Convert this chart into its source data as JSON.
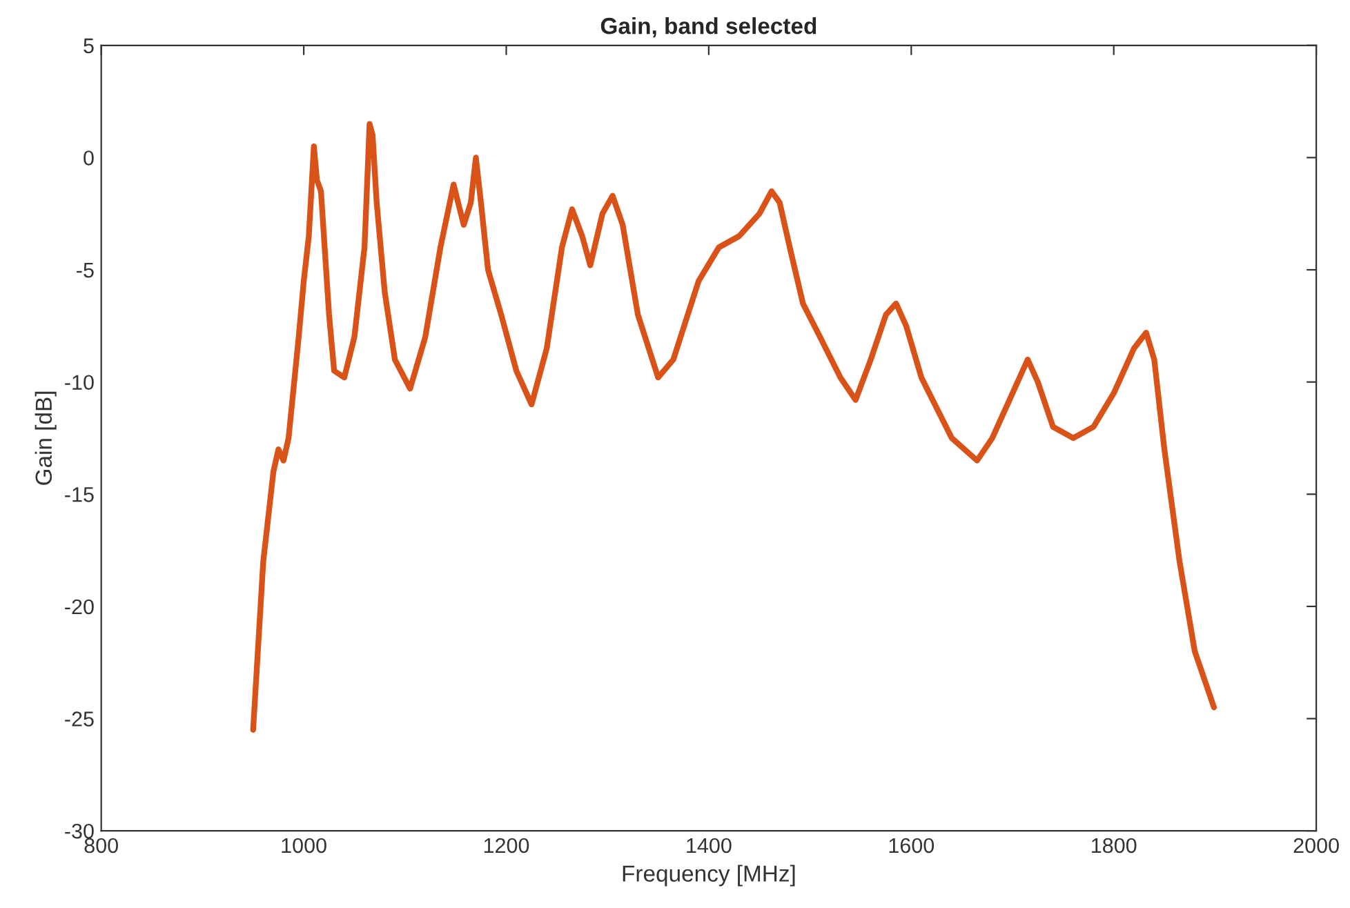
{
  "chart_data": {
    "type": "line",
    "title": "Gain, band selected",
    "xlabel": "Frequency [MHz]",
    "ylabel": "Gain [dB]",
    "xlim": [
      800,
      2000
    ],
    "ylim": [
      -30,
      5
    ],
    "xticks": [
      800,
      1000,
      1200,
      1400,
      1600,
      1800,
      2000
    ],
    "yticks": [
      -30,
      -25,
      -20,
      -15,
      -10,
      -5,
      0,
      5
    ],
    "grid": false,
    "marker": "none",
    "line_style": "solid",
    "x": [
      950,
      960,
      970,
      975,
      980,
      985,
      995,
      1000,
      1005,
      1010,
      1013,
      1017,
      1025,
      1030,
      1040,
      1050,
      1060,
      1065,
      1068,
      1072,
      1080,
      1090,
      1105,
      1120,
      1135,
      1148,
      1158,
      1165,
      1170,
      1175,
      1182,
      1195,
      1210,
      1225,
      1240,
      1255,
      1265,
      1275,
      1283,
      1295,
      1305,
      1315,
      1330,
      1350,
      1365,
      1390,
      1410,
      1430,
      1450,
      1462,
      1470,
      1480,
      1493,
      1510,
      1530,
      1545,
      1560,
      1575,
      1585,
      1595,
      1610,
      1640,
      1665,
      1680,
      1700,
      1715,
      1725,
      1740,
      1760,
      1780,
      1800,
      1820,
      1832,
      1840,
      1850,
      1865,
      1880,
      1899
    ],
    "series": [
      {
        "color": "#d95319",
        "values": [
          -25.5,
          -18,
          -14,
          -13,
          -13.5,
          -12.5,
          -8,
          -5.5,
          -3.5,
          0.5,
          -1,
          -1.5,
          -7,
          -9.5,
          -9.8,
          -8,
          -4,
          1.5,
          1,
          -2,
          -6,
          -9,
          -10.3,
          -8,
          -4,
          -1.2,
          -3,
          -2,
          0,
          -2,
          -5,
          -7,
          -9.5,
          -11,
          -8.5,
          -4,
          -2.3,
          -3.5,
          -4.8,
          -2.5,
          -1.7,
          -3,
          -7,
          -9.8,
          -9,
          -5.5,
          -4,
          -3.5,
          -2.5,
          -1.5,
          -2,
          -4,
          -6.5,
          -8,
          -9.8,
          -10.8,
          -9,
          -7,
          -6.5,
          -7.5,
          -9.8,
          -12.5,
          -13.5,
          -12.5,
          -10.5,
          -9,
          -10,
          -12,
          -12.5,
          -12,
          -10.5,
          -8.5,
          -7.8,
          -9,
          -13,
          -18,
          -22,
          -24.5
        ]
      }
    ]
  }
}
